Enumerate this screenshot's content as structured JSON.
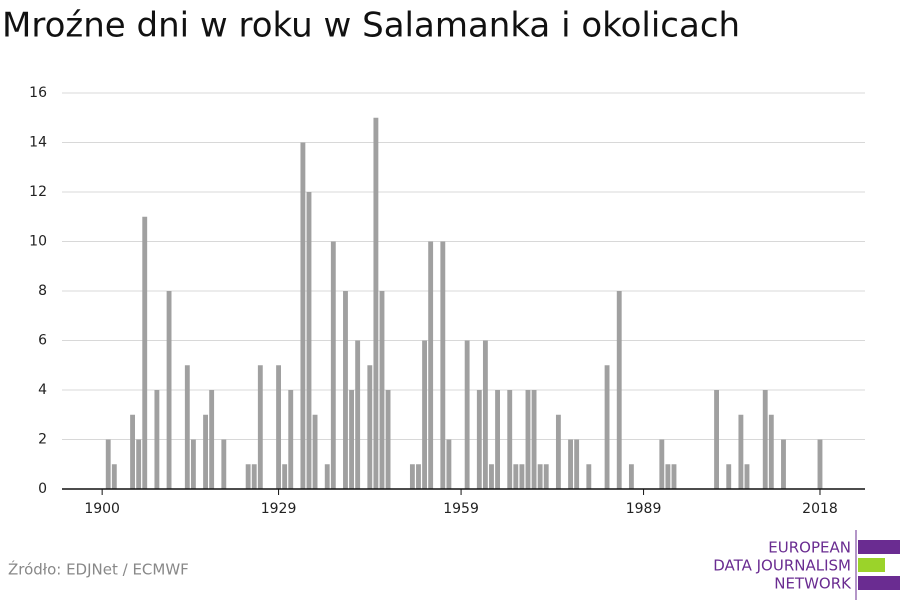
{
  "chart_data": {
    "type": "bar",
    "title": "Mroźne dni w roku w Salamanka i okolicach",
    "x": [
      1900,
      1901,
      1902,
      1903,
      1904,
      1905,
      1906,
      1907,
      1908,
      1909,
      1910,
      1911,
      1912,
      1913,
      1914,
      1915,
      1916,
      1917,
      1918,
      1919,
      1920,
      1921,
      1922,
      1923,
      1924,
      1925,
      1926,
      1927,
      1928,
      1929,
      1930,
      1931,
      1932,
      1933,
      1934,
      1935,
      1936,
      1937,
      1938,
      1939,
      1940,
      1941,
      1942,
      1943,
      1944,
      1945,
      1946,
      1947,
      1948,
      1949,
      1950,
      1951,
      1952,
      1953,
      1954,
      1955,
      1956,
      1957,
      1958,
      1959,
      1960,
      1961,
      1962,
      1963,
      1964,
      1965,
      1966,
      1967,
      1968,
      1969,
      1970,
      1971,
      1972,
      1973,
      1974,
      1975,
      1976,
      1977,
      1978,
      1979,
      1980,
      1981,
      1982,
      1983,
      1984,
      1985,
      1986,
      1987,
      1988,
      1989,
      1990,
      1991,
      1992,
      1993,
      1994,
      1995,
      1996,
      1997,
      1998,
      1999,
      2000,
      2001,
      2002,
      2003,
      2004,
      2005,
      2006,
      2007,
      2008,
      2009,
      2010,
      2011,
      2012,
      2013,
      2014,
      2015,
      2016,
      2017,
      2018
    ],
    "values": [
      0,
      2,
      1,
      0,
      0,
      3,
      2,
      11,
      0,
      4,
      0,
      8,
      0,
      0,
      5,
      2,
      0,
      3,
      4,
      0,
      2,
      0,
      0,
      0,
      1,
      1,
      5,
      0,
      0,
      5,
      1,
      4,
      0,
      14,
      12,
      3,
      0,
      1,
      10,
      0,
      8,
      4,
      6,
      0,
      5,
      15,
      8,
      4,
      0,
      0,
      0,
      1,
      1,
      6,
      10,
      0,
      10,
      2,
      0,
      0,
      6,
      0,
      4,
      6,
      1,
      4,
      0,
      4,
      1,
      1,
      4,
      4,
      1,
      1,
      0,
      3,
      0,
      2,
      2,
      0,
      1,
      0,
      0,
      5,
      0,
      8,
      0,
      1,
      0,
      0,
      0,
      0,
      2,
      1,
      1,
      0,
      0,
      0,
      0,
      0,
      0,
      4,
      0,
      1,
      0,
      3,
      1,
      0,
      0,
      4,
      3,
      0,
      2,
      0,
      0,
      0,
      0,
      0,
      2
    ],
    "color": "#a0a0a0",
    "xlim": [
      1893.4,
      2025.4
    ],
    "xticks": [
      1900,
      1929,
      1959,
      1989,
      2018
    ],
    "ylim": [
      0,
      16
    ],
    "yticks": [
      0,
      2,
      4,
      6,
      8,
      10,
      12,
      14,
      16
    ],
    "grid": true,
    "source": "Źródło: EDJNet / ECMWF",
    "logo": [
      "EUROPEAN",
      "DATA JOURNALISM",
      "NETWORK"
    ]
  }
}
